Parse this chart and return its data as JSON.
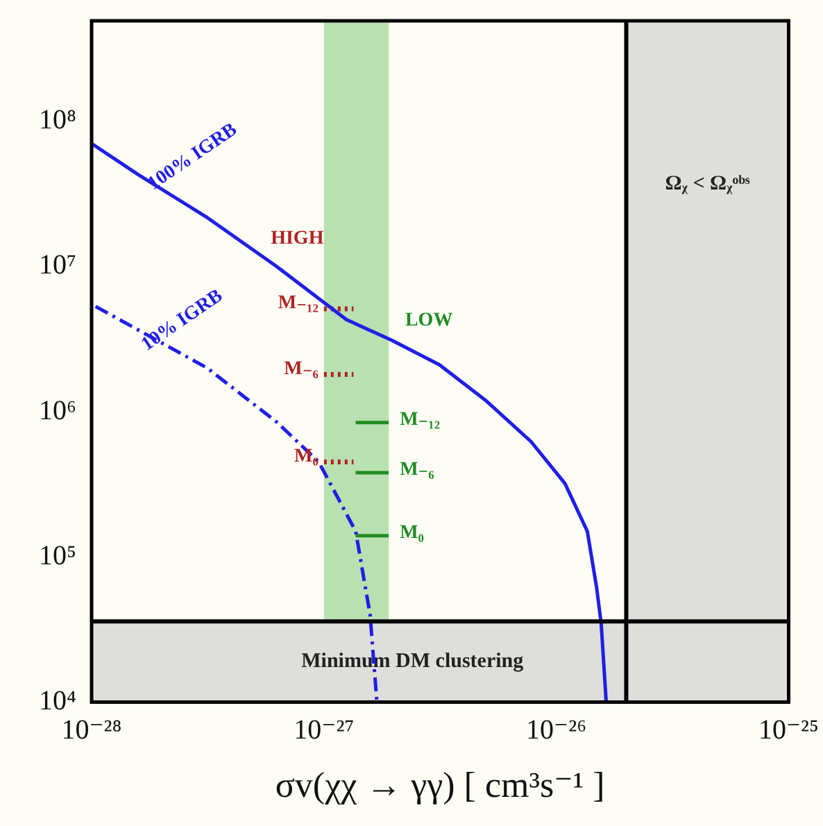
{
  "chart_data": {
    "type": "line",
    "xlabel": "σv(χχ → γγ) [ cm³s⁻¹ ]",
    "log": "xy",
    "grid": false,
    "legend": false,
    "marker": "none",
    "xlim": [
      1e-28,
      1e-25
    ],
    "xticks": [
      {
        "value": 1e-28,
        "label": "10⁻²⁸"
      },
      {
        "value": 1e-27,
        "label": "10⁻²⁷"
      },
      {
        "value": 1e-26,
        "label": "10⁻²⁶"
      },
      {
        "value": 1e-25,
        "label": "10⁻²⁵"
      }
    ],
    "ylim": [
      10000.0,
      490000000.0
    ],
    "yticks": [
      {
        "value": 10000.0,
        "label": "10⁴"
      },
      {
        "value": 100000.0,
        "label": "10⁵"
      },
      {
        "value": 1000000.0,
        "label": "10⁶"
      },
      {
        "value": 10000000.0,
        "label": "10⁷"
      },
      {
        "value": 100000000.0,
        "label": "10⁸"
      }
    ],
    "series": [
      {
        "color": "#1f1fe6",
        "line_style": "solid",
        "x": [
          1e-28,
          1.58e-28,
          3.1e-28,
          6.25e-28,
          1.25e-27,
          1.96e-27,
          3.14e-27,
          4.95e-27,
          7.8e-27,
          1.09e-26,
          1.36e-26,
          1.49e-26,
          1.56e-26,
          1.64e-26
        ],
        "values": [
          70000000.0,
          43000000.0,
          22000000.0,
          10000000.0,
          4300000.0,
          3100000.0,
          2100000.0,
          1200000.0,
          620000.0,
          320000.0,
          150000.0,
          62000.0,
          35000.0,
          10000.0
        ]
      },
      {
        "color": "#1f1fe6",
        "line_style": "dashdot",
        "x": [
          1.04e-28,
          3.14e-28,
          6.25e-28,
          9.5e-28,
          1.37e-27,
          1.58e-27,
          1.69e-27
        ],
        "values": [
          5300000.0,
          2000000.0,
          850000.0,
          450000.0,
          150000.0,
          40000.0,
          10000.0
        ]
      },
      {
        "name": "M₋₁₂",
        "color": "#b22222",
        "line_style": "dotted",
        "x": [
          1e-27,
          1.34e-27
        ],
        "values": [
          5100000.0,
          5100000.0
        ]
      },
      {
        "name": "M₋₆",
        "color": "#b22222",
        "line_style": "dotted",
        "x": [
          1e-27,
          1.34e-27
        ],
        "values": [
          1800000.0,
          1800000.0
        ]
      },
      {
        "name": "M₀",
        "color": "#b22222",
        "line_style": "dotted",
        "x": [
          1e-27,
          1.34e-27
        ],
        "values": [
          450000.0,
          450000.0
        ]
      },
      {
        "name": "M₋₁₂",
        "color": "#228b22",
        "line_style": "solid",
        "x": [
          1.37e-27,
          1.9e-27
        ],
        "values": [
          840000.0,
          840000.0
        ]
      },
      {
        "name": "M₋₆",
        "color": "#228b22",
        "line_style": "solid",
        "x": [
          1.37e-27,
          1.9e-27
        ],
        "values": [
          380000.0,
          380000.0
        ]
      },
      {
        "name": "M₀",
        "color": "#228b22",
        "line_style": "solid",
        "x": [
          1.37e-27,
          1.9e-27
        ],
        "values": [
          140000.0,
          140000.0
        ]
      }
    ],
    "bands": [
      {
        "axis": "x",
        "from": 1e-27,
        "to": 1.9e-27,
        "color": "#b8e0b0"
      },
      {
        "axis": "y",
        "from": 10000.0,
        "to": 36000.0,
        "color": "#dededa",
        "label": "Minimum DM clustering"
      },
      {
        "axis": "x",
        "from": 2e-26,
        "to": 1e-25,
        "color": "#dededa",
        "label": "Ωᵪ < Ωᵪᵒᵇˢ"
      }
    ],
    "ref_lines": [
      {
        "axis": "y",
        "value": 36000.0,
        "color": "#000000"
      },
      {
        "axis": "x",
        "value": 2e-26,
        "color": "#000000"
      }
    ],
    "annotations": [
      "100% IGRB",
      "10% IGRB",
      "HIGH",
      "LOW"
    ]
  }
}
